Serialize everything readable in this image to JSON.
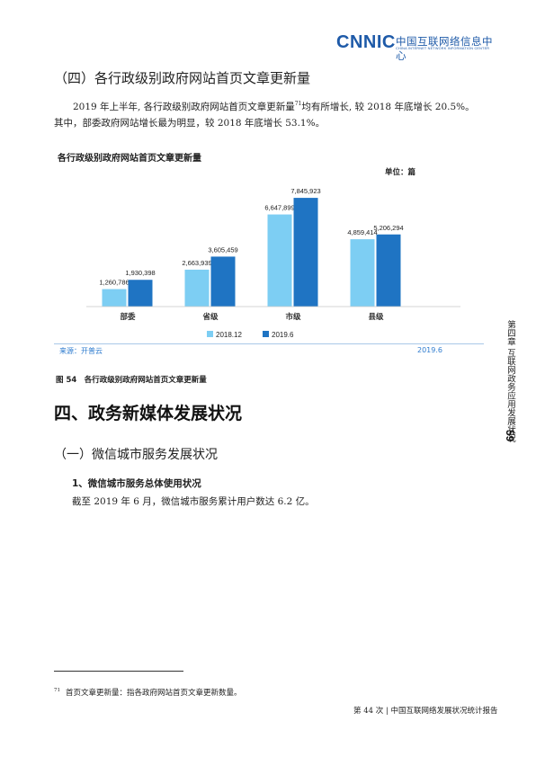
{
  "header": {
    "logo_word": "CNNIC",
    "logo_cn": "中国互联网络信息中心",
    "logo_en": "CHINA INTERNET NETWORK INFORMATION CENTER"
  },
  "section_sub_title": "（四）各行政级别政府网站首页文章更新量",
  "paragraph1": {
    "before_sup": "2019 年上半年, 各行政级别政府网站首页文章更新量",
    "sup": "71",
    "after_sup": "均有所增长, 较 2018 年底增长 20.5%。"
  },
  "paragraph2": "其中，部委政府网站增长最为明显，较 2018 年底增长 53.1%。",
  "chart_data": {
    "type": "bar",
    "title": "各行政级别政府网站首页文章更新量",
    "unit_label": "单位：篇",
    "categories": [
      "部委",
      "省级",
      "市级",
      "县级"
    ],
    "series": [
      {
        "name": "2018.12",
        "values": [
          1260786,
          2663939,
          6647899,
          4859414
        ],
        "labels": [
          "1,260,786",
          "2,663,939",
          "6,647,899",
          "4,859,414"
        ],
        "color": "#7dcef3"
      },
      {
        "name": "2019.6",
        "values": [
          1930398,
          3605459,
          7845923,
          5206294
        ],
        "labels": [
          "1,930,398",
          "3,605,459",
          "7,845,923",
          "5,206,294"
        ],
        "color": "#1f74c3"
      }
    ],
    "ylim": [
      0,
      8500000
    ],
    "grid": false,
    "legend_position": "bottom",
    "source": "来源：开普云",
    "date": "2019.6"
  },
  "figure_caption": "图 54　各行政级别政府网站首页文章更新量",
  "section_title": "四、政务新媒体发展状况",
  "subsection_title": "（一）微信城市服务发展状况",
  "subsubsection_title": "1、微信城市服务总体使用状况",
  "paragraph3": "截至 2019 年 6 月，微信城市服务累计用户数达 6.2 亿。",
  "footnote": {
    "number": "71",
    "text": "首页文章更新量：指各政府网站首页文章更新数量。"
  },
  "footer": "第 44 次 | 中国互联网络发展状况统计报告",
  "side_tab": {
    "chapter": "第四章 互联网政务应用发展状况",
    "page_number": "59"
  },
  "colors": {
    "brand": "#1e5aa8",
    "bar_2018": "#7dcef3",
    "bar_2019": "#1f74c3",
    "source_text": "#2f7ccf"
  }
}
